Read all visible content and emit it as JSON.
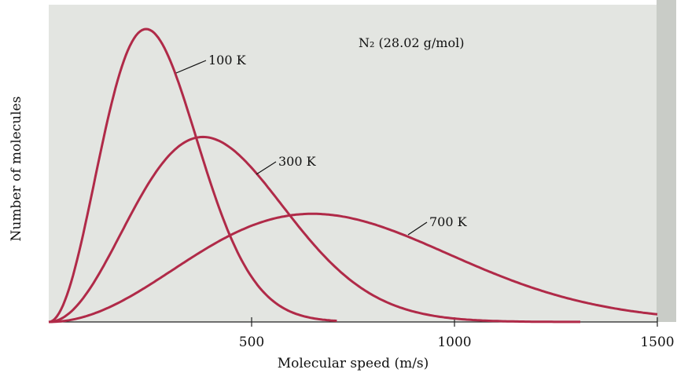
{
  "chart_data": {
    "type": "line",
    "title": "",
    "annotation": "N₂ (28.02 g/mol)",
    "xlabel": "Molecular speed (m/s)",
    "ylabel": "Number of molecules",
    "xlim": [
      0,
      1500
    ],
    "xticks": [
      500,
      1000,
      1500
    ],
    "y_tick_labels": false,
    "grid": false,
    "legend": "none",
    "molar_mass_g_per_mol": 28.02,
    "series": [
      {
        "name": "100 K",
        "temperature_K": 100,
        "peak_speed": 240,
        "x_max": 710
      },
      {
        "name": "300 K",
        "temperature_K": 300,
        "peak_speed": 380,
        "x_max": 1310
      },
      {
        "name": "700 K",
        "temperature_K": 700,
        "peak_speed": 650,
        "x_max": 1500
      }
    ],
    "colors": {
      "curve": "#b02a48",
      "panel": "#e3e5e1",
      "panel_side": "#c9ccc7"
    }
  }
}
